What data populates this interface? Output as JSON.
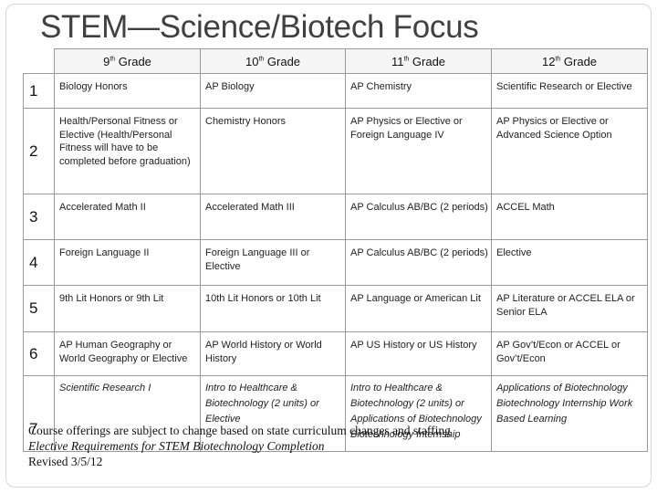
{
  "title": "STEM—Science/Biotech Focus",
  "headers": [
    "9th Grade",
    "10th Grade",
    "11th Grade",
    "12th Grade"
  ],
  "header_parts": [
    {
      "n": "9",
      "s": "th",
      "t": " Grade"
    },
    {
      "n": "10",
      "s": "th",
      "t": " Grade"
    },
    {
      "n": "11",
      "s": "th",
      "t": " Grade"
    },
    {
      "n": "12",
      "s": "th",
      "t": " Grade"
    }
  ],
  "rows": [
    {
      "num": "1",
      "cells": [
        "Biology Honors",
        "AP Biology",
        "AP Chemistry",
        "Scientific Research or Elective"
      ]
    },
    {
      "num": "2",
      "cells": [
        "Health/Personal Fitness  or Elective (Health/Personal Fitness will have to be completed before graduation)",
        "Chemistry Honors",
        "AP Physics or Elective  or Foreign Language IV",
        "AP Physics or Elective or Advanced Science Option"
      ]
    },
    {
      "num": "3",
      "cells": [
        "Accelerated Math II",
        "Accelerated Math III",
        "AP Calculus AB/BC (2 periods)",
        "ACCEL Math"
      ]
    },
    {
      "num": "4",
      "cells": [
        "Foreign Language II",
        "Foreign Language III or Elective",
        "AP Calculus AB/BC (2 periods)",
        "Elective"
      ]
    },
    {
      "num": "5",
      "cells": [
        "9th Lit Honors or 9th Lit",
        "10th Lit Honors or 10th Lit",
        "AP Language or American Lit",
        "AP Literature or ACCEL ELA or Senior ELA"
      ]
    },
    {
      "num": "6",
      "cells": [
        "AP Human Geography or World Geography or Elective",
        "AP World History or World History",
        "AP US History or US History",
        "AP Gov’t/Econ or ACCEL or  Gov’t/Econ"
      ]
    },
    {
      "num": "7",
      "cells": [
        "Scientific Research I",
        "Intro to Healthcare & Biotechnology (2 units) or Elective",
        "Intro to Healthcare & Biotechnology (2 units) or Applications of Biotechnology Biotechnology Internship",
        "Applications of Biotechnology Biotechnology Internship Work Based Learning"
      ]
    }
  ],
  "footer": {
    "line1": "Course offerings are subject to change based on state curriculum changes and staffing",
    "line2": "Elective Requirements for STEM Biotechnology Completion",
    "line3": "Revised 3/5/12"
  }
}
